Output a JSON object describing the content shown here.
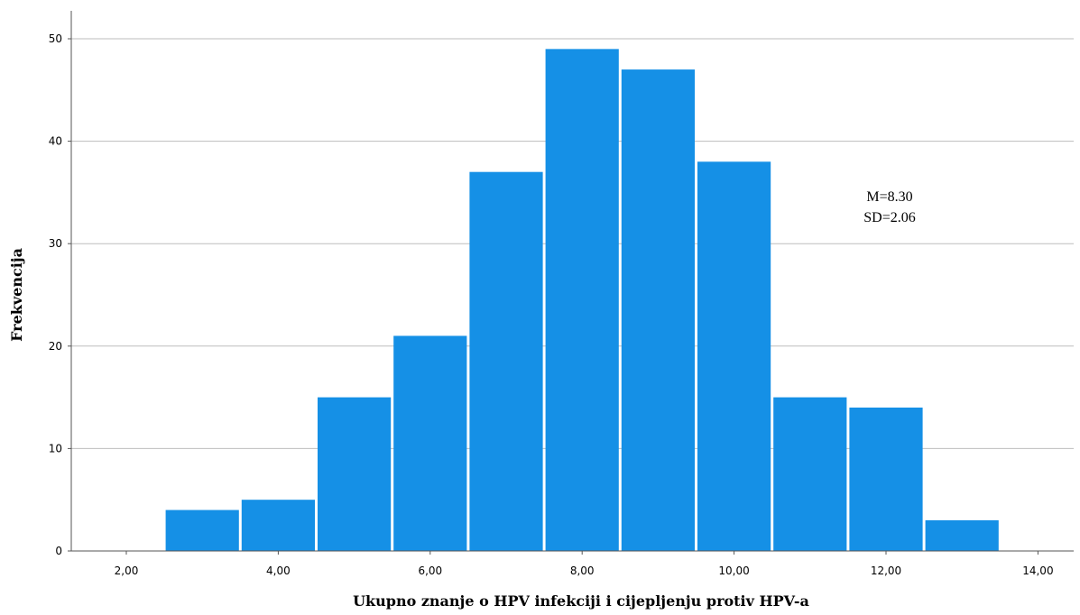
{
  "chart_data": {
    "type": "bar",
    "title": "",
    "xlabel": "Ukupno znanje o HPV infekciji i cijepljenju protiv HPV-a",
    "ylabel": "Frekvencija",
    "x_ticks": [
      "2,00",
      "4,00",
      "6,00",
      "8,00",
      "10,00",
      "12,00",
      "14,00"
    ],
    "x_tick_values": [
      2,
      4,
      6,
      8,
      10,
      12,
      14
    ],
    "y_ticks": [
      "0",
      "10",
      "20",
      "30",
      "40",
      "50"
    ],
    "y_tick_values": [
      0,
      10,
      20,
      30,
      40,
      50
    ],
    "xlim": [
      1,
      15
    ],
    "ylim": [
      0,
      53
    ],
    "bins": [
      {
        "center": 3,
        "value": 4
      },
      {
        "center": 4,
        "value": 5
      },
      {
        "center": 5,
        "value": 15
      },
      {
        "center": 6,
        "value": 21
      },
      {
        "center": 7,
        "value": 37
      },
      {
        "center": 8,
        "value": 49
      },
      {
        "center": 9,
        "value": 47
      },
      {
        "center": 10,
        "value": 38
      },
      {
        "center": 11,
        "value": 15
      },
      {
        "center": 12,
        "value": 14
      },
      {
        "center": 13,
        "value": 3
      }
    ],
    "bar_color": "#1590e6",
    "grid": "horizontal",
    "annotations": [
      "M=8.30",
      "SD=2.06"
    ]
  }
}
